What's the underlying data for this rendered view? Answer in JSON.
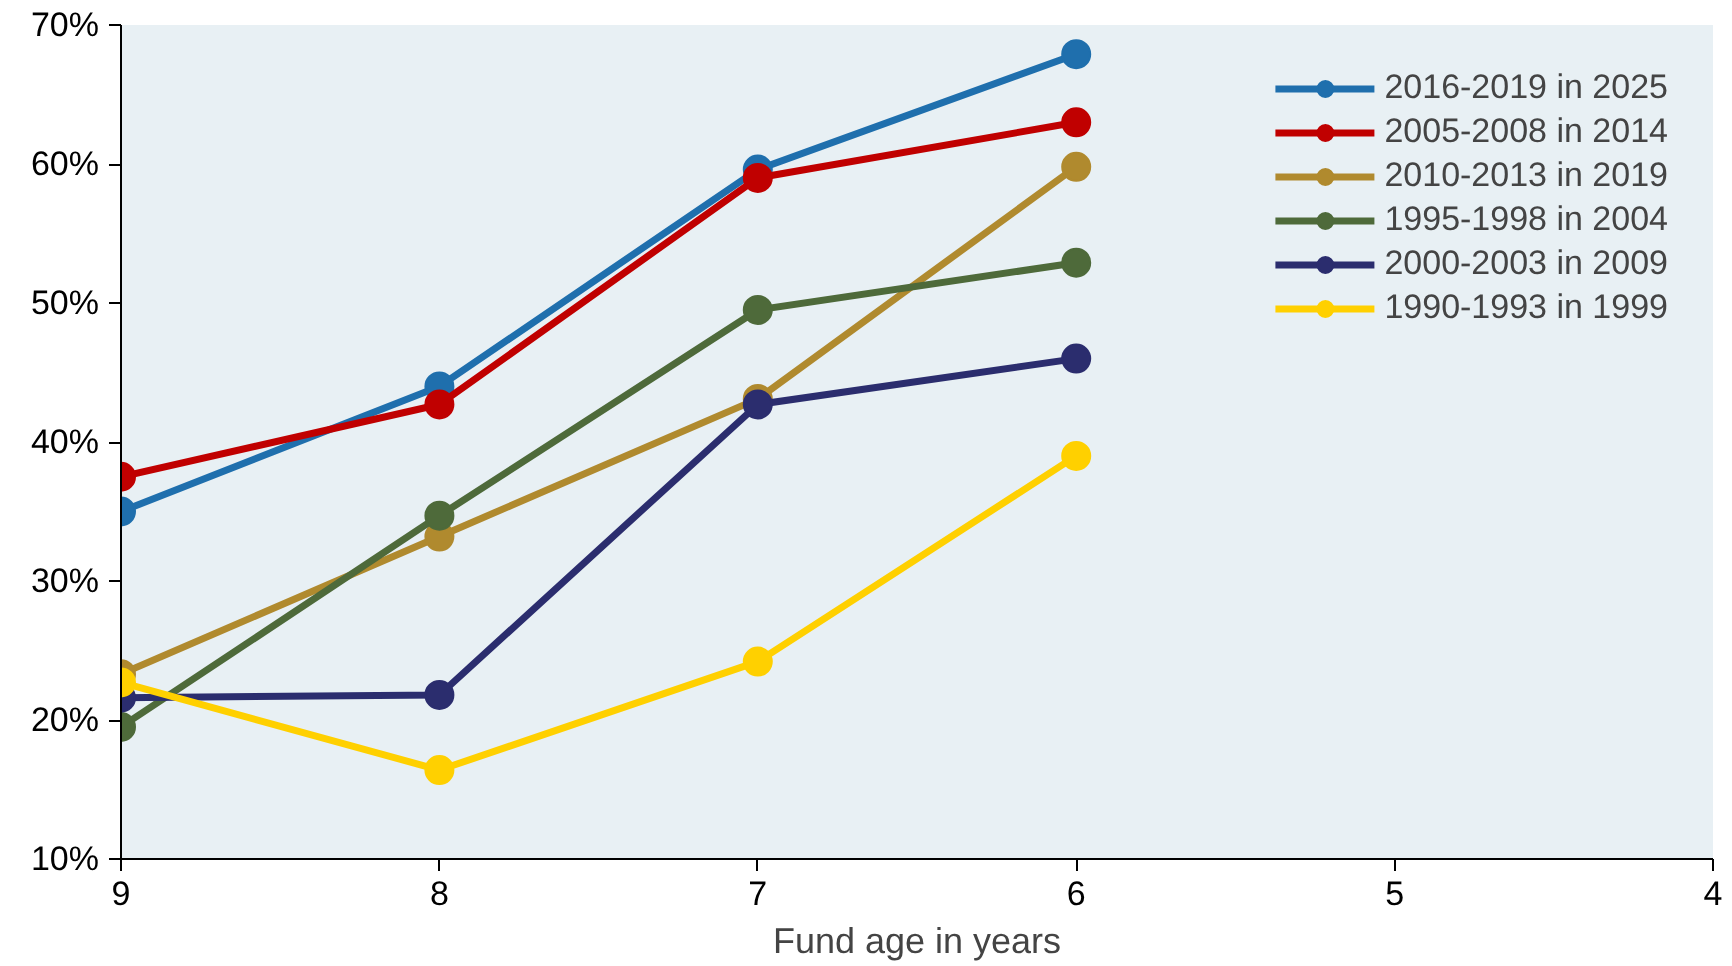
{
  "chart_data": {
    "type": "line",
    "xlabel": "Fund age in years",
    "x": [
      9,
      8,
      7,
      6
    ],
    "xlim": [
      9,
      4
    ],
    "xticks": [
      9,
      8,
      7,
      6,
      5,
      4
    ],
    "ylim": [
      10,
      70
    ],
    "yticks": [
      {
        "value": 10,
        "label": "10%"
      },
      {
        "value": 20,
        "label": "20%"
      },
      {
        "value": 30,
        "label": "30%"
      },
      {
        "value": 40,
        "label": "40%"
      },
      {
        "value": 50,
        "label": "50%"
      },
      {
        "value": 60,
        "label": "60%"
      },
      {
        "value": 70,
        "label": "70%"
      }
    ],
    "grid": false,
    "legend": "top right",
    "marker": "circle",
    "line_style": "solid",
    "series": [
      {
        "name": "2016-2019 in 2025",
        "color": "#1f6fad",
        "values": [
          35.0,
          44.0,
          59.6,
          67.9
        ]
      },
      {
        "name": "2005-2008 in 2014",
        "color": "#c00000",
        "values": [
          37.5,
          42.7,
          59.0,
          63.0
        ]
      },
      {
        "name": "2010-2013 in 2019",
        "color": "#b08a2e",
        "values": [
          23.3,
          33.2,
          43.1,
          59.8
        ]
      },
      {
        "name": "1995-1998 in 2004",
        "color": "#4e6a3a",
        "values": [
          19.5,
          34.7,
          49.5,
          52.9
        ]
      },
      {
        "name": "2000-2003 in 2009",
        "color": "#2b2d6e",
        "values": [
          21.6,
          21.8,
          42.7,
          46.0
        ]
      },
      {
        "name": "1990-1993 in 1999",
        "color": "#ffd000",
        "values": [
          22.7,
          16.4,
          24.2,
          39.0
        ]
      }
    ]
  }
}
